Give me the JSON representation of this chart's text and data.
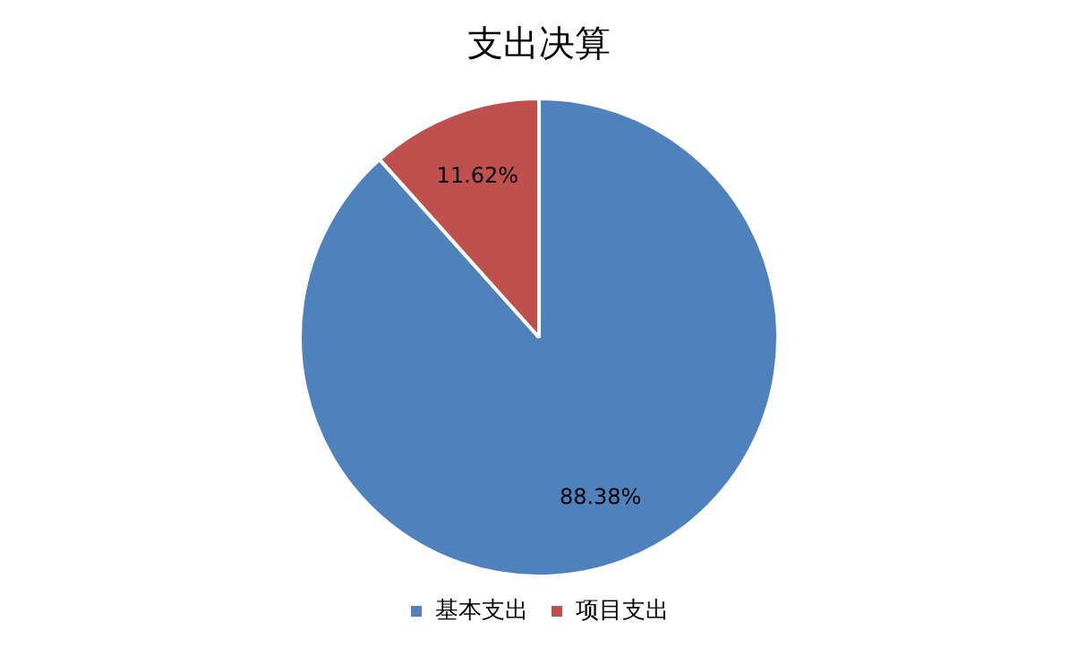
{
  "chart_data": {
    "type": "pie",
    "title": "支出决算",
    "categories": [
      "基本支出",
      "项目支出"
    ],
    "values": [
      88.38,
      11.62
    ],
    "colors": [
      "#4f81bd",
      "#c0504d"
    ],
    "value_labels": [
      "88.38%",
      "11.62%"
    ],
    "legend": "bottom"
  }
}
